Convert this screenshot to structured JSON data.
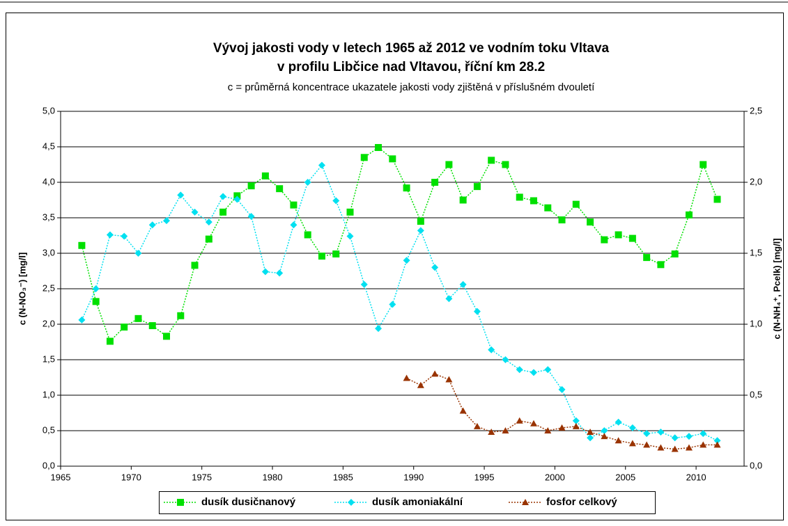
{
  "chart_data": {
    "type": "line",
    "title": "Vývoj jakosti vody v letech 1965 až 2012 ve vodním toku Vltava",
    "title2": "v profilu Libčice nad Vltavou, říční km 28.2",
    "subtitle": "c = průměrná koncentrace ukazatele jakosti vody zjištěná v příslušném dvouletí",
    "y_label": "c (N-NO₃⁻) [mg/l]",
    "y2_label": "c (N-NH₄⁺, Pcelk) [mg/l]",
    "x": [
      1966.5,
      1967.5,
      1968.5,
      1969.5,
      1970.5,
      1971.5,
      1972.5,
      1973.5,
      1974.5,
      1975.5,
      1976.5,
      1977.5,
      1978.5,
      1979.5,
      1980.5,
      1981.5,
      1982.5,
      1983.5,
      1984.5,
      1985.5,
      1986.5,
      1987.5,
      1988.5,
      1989.5,
      1990.5,
      1991.5,
      1992.5,
      1993.5,
      1994.5,
      1995.5,
      1996.5,
      1997.5,
      1998.5,
      1999.5,
      2000.5,
      2001.5,
      2002.5,
      2003.5,
      2004.5,
      2005.5,
      2006.5,
      2007.5,
      2008.5,
      2009.5,
      2010.5,
      2011.5
    ],
    "series": [
      {
        "name": "dusík dusičnanový",
        "color": "#00e000",
        "marker": "square",
        "values": [
          3.11,
          2.32,
          1.76,
          1.96,
          2.08,
          1.98,
          1.83,
          2.12,
          2.83,
          3.2,
          3.58,
          3.81,
          3.95,
          4.09,
          3.91,
          3.68,
          3.26,
          2.96,
          2.99,
          3.58,
          4.35,
          4.49,
          4.33,
          3.92,
          3.45,
          4.0,
          4.25,
          3.75,
          3.94,
          4.31,
          4.25,
          3.79,
          3.74,
          3.64,
          3.47,
          3.69,
          3.44,
          3.19,
          3.26,
          3.21,
          2.94,
          2.84,
          2.99,
          3.54,
          4.25,
          3.76
        ]
      },
      {
        "name": "dusík amoniakální",
        "color": "#00e0f0",
        "marker": "diamond",
        "axis": "y2",
        "values": [
          1.03,
          1.25,
          1.63,
          1.62,
          1.5,
          1.7,
          1.73,
          1.91,
          1.79,
          1.72,
          1.9,
          1.88,
          1.76,
          1.37,
          1.36,
          1.7,
          2.0,
          2.12,
          1.87,
          1.62,
          1.28,
          0.97,
          1.14,
          1.45,
          1.66,
          1.4,
          1.18,
          1.28,
          1.09,
          0.82,
          0.75,
          0.68,
          0.66,
          0.68,
          0.54,
          0.32,
          0.2,
          0.25,
          0.31,
          0.27,
          0.23,
          0.24,
          0.2,
          0.21,
          0.23,
          0.18
        ]
      },
      {
        "name": "fosfor celkový",
        "color": "#993300",
        "marker": "triangle",
        "axis": "y2",
        "values": [
          null,
          null,
          null,
          null,
          null,
          null,
          null,
          null,
          null,
          null,
          null,
          null,
          null,
          null,
          null,
          null,
          null,
          null,
          null,
          null,
          null,
          null,
          null,
          0.62,
          0.57,
          0.65,
          0.61,
          0.39,
          0.28,
          0.24,
          0.25,
          0.32,
          0.3,
          0.25,
          0.27,
          0.28,
          0.24,
          0.21,
          0.18,
          0.16,
          0.15,
          0.13,
          0.12,
          0.13,
          0.15,
          0.15
        ]
      }
    ],
    "xlim": [
      1965,
      2013.4
    ],
    "xticks": [
      1965,
      1970,
      1975,
      1980,
      1985,
      1990,
      1995,
      2000,
      2005,
      2010
    ],
    "ylim": [
      0,
      5
    ],
    "yticks": [
      {
        "value": 0,
        "label": "0,0"
      },
      {
        "value": 0.5,
        "label": "0,5"
      },
      {
        "value": 1,
        "label": "1,0"
      },
      {
        "value": 1.5,
        "label": "1,5"
      },
      {
        "value": 2,
        "label": "2,0"
      },
      {
        "value": 2.5,
        "label": "2,5"
      },
      {
        "value": 3,
        "label": "3,0"
      },
      {
        "value": 3.5,
        "label": "3,5"
      },
      {
        "value": 4,
        "label": "4,0"
      },
      {
        "value": 4.5,
        "label": "4,5"
      },
      {
        "value": 5,
        "label": "5,0"
      }
    ],
    "y2lim": [
      0,
      2.5
    ],
    "y2ticks": [
      {
        "value": 0,
        "label": "0,0"
      },
      {
        "value": 0.5,
        "label": "0,5"
      },
      {
        "value": 1,
        "label": "1,0"
      },
      {
        "value": 1.5,
        "label": "1,5"
      },
      {
        "value": 2,
        "label": "2,0"
      },
      {
        "value": 2.5,
        "label": "2,5"
      }
    ],
    "grid": true,
    "legend": "bottom"
  }
}
